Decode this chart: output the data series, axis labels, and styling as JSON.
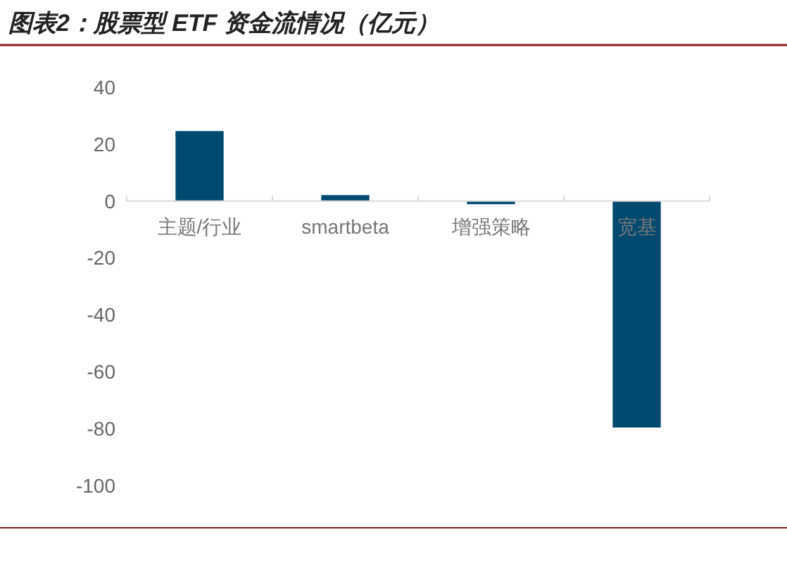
{
  "chart_data": {
    "type": "bar",
    "title": "图表2：股票型 ETF 资金流情况（亿元）",
    "categories": [
      "主题/行业",
      "smartbeta",
      "增强策略",
      "宽基"
    ],
    "values": [
      24.6,
      2.1,
      -1.1,
      -79.6
    ],
    "color": "#004a70",
    "ylim": [
      -100,
      40
    ],
    "yticks": [
      -100,
      -80,
      -60,
      -40,
      -20,
      0,
      20,
      40
    ],
    "grid": false
  }
}
